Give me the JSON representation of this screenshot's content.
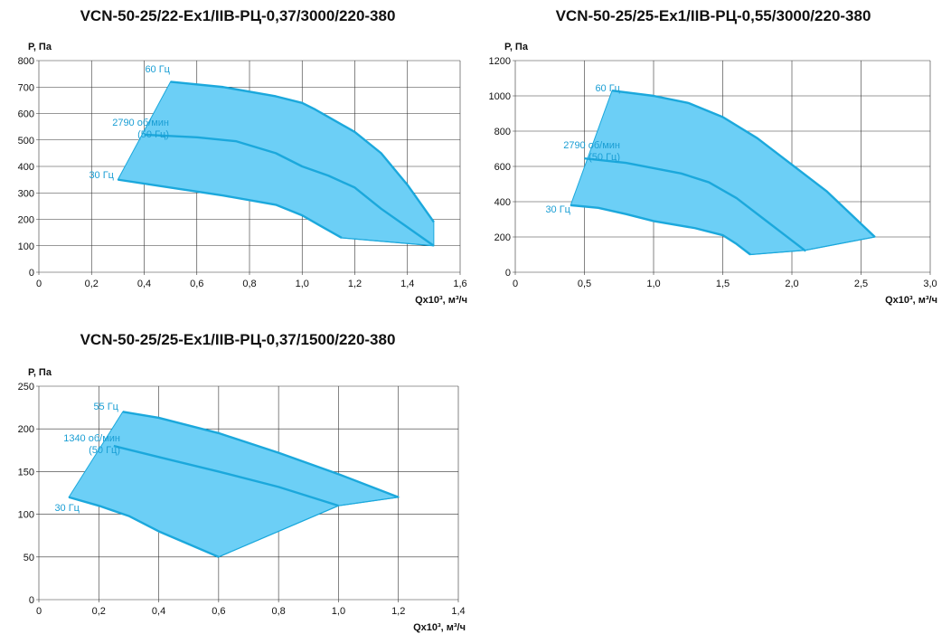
{
  "colors": {
    "fill": "#6ccff6",
    "stroke": "#1ba8dc",
    "label": "#1a9ed4",
    "grid": "#333333",
    "text": "#111111"
  },
  "chart_data": [
    {
      "type": "area",
      "title": "VCN-50-25/22-Ex1/IIB-РЦ-0,37/3000/220-380",
      "ylabel": "Р, Па",
      "xlabel": "Qx10³, м³/ч",
      "xlim": [
        0,
        1.6
      ],
      "ylim": [
        0,
        800
      ],
      "x_ticks": [
        "0",
        "0,2",
        "0,4",
        "0,6",
        "0,8",
        "1,0",
        "1,2",
        "1,4",
        "1,6"
      ],
      "y_ticks": [
        "0",
        "100",
        "200",
        "300",
        "400",
        "500",
        "600",
        "700",
        "800"
      ],
      "grid": true,
      "series": [
        {
          "name": "60 Гц",
          "x": [
            0.5,
            0.7,
            0.9,
            1.0,
            1.05,
            1.2,
            1.3,
            1.4,
            1.5
          ],
          "y": [
            720,
            700,
            665,
            640,
            615,
            530,
            450,
            330,
            190
          ]
        },
        {
          "name": "2790 об/мин (50 Гц)",
          "x": [
            0.4,
            0.6,
            0.75,
            0.9,
            1.0,
            1.1,
            1.2,
            1.3,
            1.4,
            1.5
          ],
          "y": [
            520,
            510,
            495,
            450,
            400,
            365,
            320,
            240,
            170,
            100
          ]
        },
        {
          "name": "30 Гц",
          "x": [
            0.3,
            0.5,
            0.7,
            0.9,
            1.0,
            1.07,
            1.15
          ],
          "y": [
            350,
            320,
            290,
            255,
            215,
            175,
            130
          ]
        },
        {
          "name": "",
          "x": [
            1.15,
            1.5
          ],
          "y": [
            130,
            100
          ]
        }
      ]
    },
    {
      "type": "area",
      "title": "VCN-50-25/25-Ex1/IIB-РЦ-0,55/3000/220-380",
      "ylabel": "Р, Па",
      "xlabel": "Qx10³, м³/ч",
      "xlim": [
        0,
        3.0
      ],
      "ylim": [
        0,
        1200
      ],
      "x_ticks": [
        "0",
        "0,5",
        "1,0",
        "1,5",
        "2,0",
        "2,5",
        "3,0"
      ],
      "y_ticks": [
        "0",
        "200",
        "400",
        "600",
        "800",
        "1000",
        "1200"
      ],
      "grid": true,
      "series": [
        {
          "name": "60 Гц",
          "x": [
            0.7,
            1.0,
            1.25,
            1.5,
            1.75,
            2.0,
            2.25,
            2.6
          ],
          "y": [
            1030,
            1000,
            960,
            880,
            760,
            610,
            460,
            200
          ]
        },
        {
          "name": "2790 об/мин (50 Гц)",
          "x": [
            0.5,
            0.8,
            1.0,
            1.2,
            1.4,
            1.6,
            1.8,
            2.1
          ],
          "y": [
            645,
            620,
            590,
            560,
            510,
            420,
            300,
            120
          ]
        },
        {
          "name": "30 Гц",
          "x": [
            0.4,
            0.6,
            0.8,
            1.0,
            1.3,
            1.5,
            1.6,
            1.7
          ],
          "y": [
            380,
            365,
            330,
            290,
            250,
            210,
            160,
            100
          ]
        },
        {
          "name": "",
          "x": [
            1.7,
            2.1,
            2.6
          ],
          "y": [
            100,
            125,
            200
          ]
        }
      ]
    },
    {
      "type": "area",
      "title": "VCN-50-25/25-Ex1/IIB-РЦ-0,37/1500/220-380",
      "ylabel": "Р, Па",
      "xlabel": "Qx10³, м³/ч",
      "xlim": [
        0,
        1.4
      ],
      "ylim": [
        0,
        250
      ],
      "x_ticks": [
        "0",
        "0,2",
        "0,4",
        "0,6",
        "0,8",
        "1,0",
        "1,2",
        "1,4"
      ],
      "y_ticks": [
        "0",
        "50",
        "100",
        "150",
        "200",
        "250"
      ],
      "grid": true,
      "series": [
        {
          "name": "55 Гц",
          "x": [
            0.28,
            0.4,
            0.6,
            0.8,
            1.0,
            1.2
          ],
          "y": [
            220,
            213,
            195,
            172,
            147,
            120
          ]
        },
        {
          "name": "1340 об/мин (50 Гц)",
          "x": [
            0.25,
            0.4,
            0.6,
            0.8,
            1.0
          ],
          "y": [
            180,
            167,
            150,
            132,
            110
          ]
        },
        {
          "name": "30 Гц",
          "x": [
            0.1,
            0.2,
            0.3,
            0.4,
            0.5,
            0.6
          ],
          "y": [
            120,
            110,
            98,
            80,
            65,
            50
          ]
        },
        {
          "name": "",
          "x": [
            0.6,
            1.0,
            1.2
          ],
          "y": [
            50,
            110,
            120
          ]
        }
      ]
    }
  ],
  "labels": [
    {
      "lines": [
        "60 Гц"
      ]
    },
    {
      "lines": [
        "2790 об/мин",
        "(50 Гц)"
      ]
    },
    {
      "lines": [
        "30 Гц"
      ]
    },
    {
      "lines": [
        "60 Гц"
      ]
    },
    {
      "lines": [
        "2790 об/мин",
        "(50 Гц)"
      ]
    },
    {
      "lines": [
        "30 Гц"
      ]
    },
    {
      "lines": [
        "55 Гц"
      ]
    },
    {
      "lines": [
        "1340 об/мин",
        "(50 Гц)"
      ]
    },
    {
      "lines": [
        "30 Гц"
      ]
    }
  ]
}
